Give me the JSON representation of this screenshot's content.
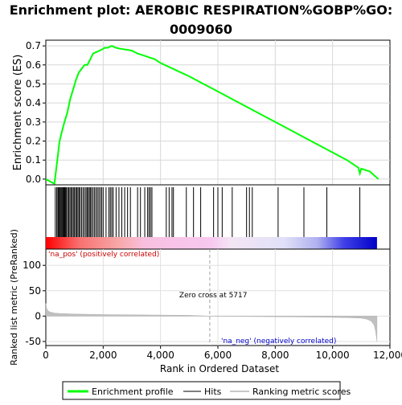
{
  "chart_data": [
    {
      "type": "line",
      "panel": "enrichment",
      "title_line1": "Enrichment plot: AEROBIC RESPIRATION%GOBP%GO:",
      "title_line2": "0009060",
      "ylabel": "Enrichment score (ES)",
      "ylim": [
        -0.03,
        0.73
      ],
      "yticks": [
        "0.0",
        "0.1",
        "0.2",
        "0.3",
        "0.4",
        "0.5",
        "0.6",
        "0.7"
      ],
      "xlim": [
        0,
        12000
      ],
      "grid": true,
      "color": "#00ff00",
      "series": [
        {
          "name": "Enrichment profile",
          "x": [
            0,
            120,
            300,
            400,
            480,
            560,
            650,
            750,
            850,
            950,
            1050,
            1150,
            1250,
            1350,
            1450,
            1550,
            1650,
            1800,
            1950,
            2050,
            2150,
            2300,
            2450,
            2600,
            2800,
            3000,
            3200,
            3400,
            3600,
            3800,
            4000,
            4500,
            5000,
            5500,
            6000,
            6500,
            7000,
            7500,
            8000,
            8500,
            9000,
            9500,
            10000,
            10500,
            10900,
            10950,
            11000,
            11300,
            11600
          ],
          "values": [
            0.0,
            -0.01,
            -0.025,
            0.1,
            0.2,
            0.25,
            0.3,
            0.35,
            0.42,
            0.47,
            0.52,
            0.56,
            0.58,
            0.6,
            0.6,
            0.63,
            0.66,
            0.67,
            0.68,
            0.69,
            0.69,
            0.7,
            0.69,
            0.685,
            0.68,
            0.675,
            0.66,
            0.65,
            0.64,
            0.63,
            0.61,
            0.575,
            0.54,
            0.5,
            0.46,
            0.42,
            0.38,
            0.34,
            0.3,
            0.26,
            0.22,
            0.18,
            0.14,
            0.1,
            0.06,
            0.03,
            0.055,
            0.04,
            0.0
          ]
        }
      ]
    },
    {
      "type": "scatter",
      "panel": "hits",
      "xlim": [
        0,
        12000
      ],
      "hit_positions": [
        330,
        380,
        420,
        450,
        480,
        510,
        540,
        570,
        600,
        630,
        660,
        690,
        720,
        760,
        800,
        840,
        880,
        920,
        960,
        1000,
        1040,
        1080,
        1120,
        1160,
        1200,
        1250,
        1300,
        1350,
        1400,
        1440,
        1480,
        1520,
        1560,
        1600,
        1650,
        1700,
        1750,
        1800,
        1850,
        1900,
        1950,
        2000,
        2100,
        2200,
        2250,
        2300,
        2350,
        2450,
        2550,
        2650,
        2750,
        2850,
        2950,
        3200,
        3300,
        3450,
        3550,
        3600,
        3650,
        3700,
        4200,
        4300,
        4400,
        4450,
        4900,
        5150,
        5400,
        5850,
        6000,
        6150,
        6500,
        7000,
        7100,
        7200,
        8100,
        9000,
        9800,
        10950
      ]
    },
    {
      "type": "area",
      "panel": "ranked-list",
      "ylabel": "Ranked list metric (PreRanked)",
      "xlabel": "Rank in Ordered Dataset",
      "ylim": [
        -58,
        132
      ],
      "yticks": [
        "-50",
        "0",
        "50",
        "100"
      ],
      "xticks": [
        "0",
        "2,000",
        "4,000",
        "6,000",
        "8,000",
        "10,000",
        "12,000"
      ],
      "xlim": [
        0,
        12000
      ],
      "zero_cross_label": "Zero cross at 5717",
      "zero_cross": 5717,
      "pos_label": "'na_pos' (positively correlated)",
      "neg_label": "'na_neg' (negatively correlated)",
      "x": [
        0,
        30,
        80,
        150,
        300,
        500,
        1000,
        2000,
        3000,
        4000,
        5000,
        5717,
        6500,
        7500,
        8500,
        9500,
        10500,
        11000,
        11200,
        11350,
        11450,
        11500,
        11550
      ],
      "values": [
        25,
        15,
        10,
        8,
        6,
        5,
        4,
        3,
        2.5,
        2,
        1.5,
        0,
        -0.5,
        -1,
        -1.5,
        -2,
        -3,
        -4,
        -6,
        -10,
        -18,
        -30,
        -50
      ]
    }
  ],
  "legend": [
    {
      "label": "Enrichment profile",
      "color": "#00ff00"
    },
    {
      "label": "Hits",
      "color": "#808080"
    },
    {
      "label": "Ranking metric scores",
      "color": "#c8c8c8"
    }
  ]
}
